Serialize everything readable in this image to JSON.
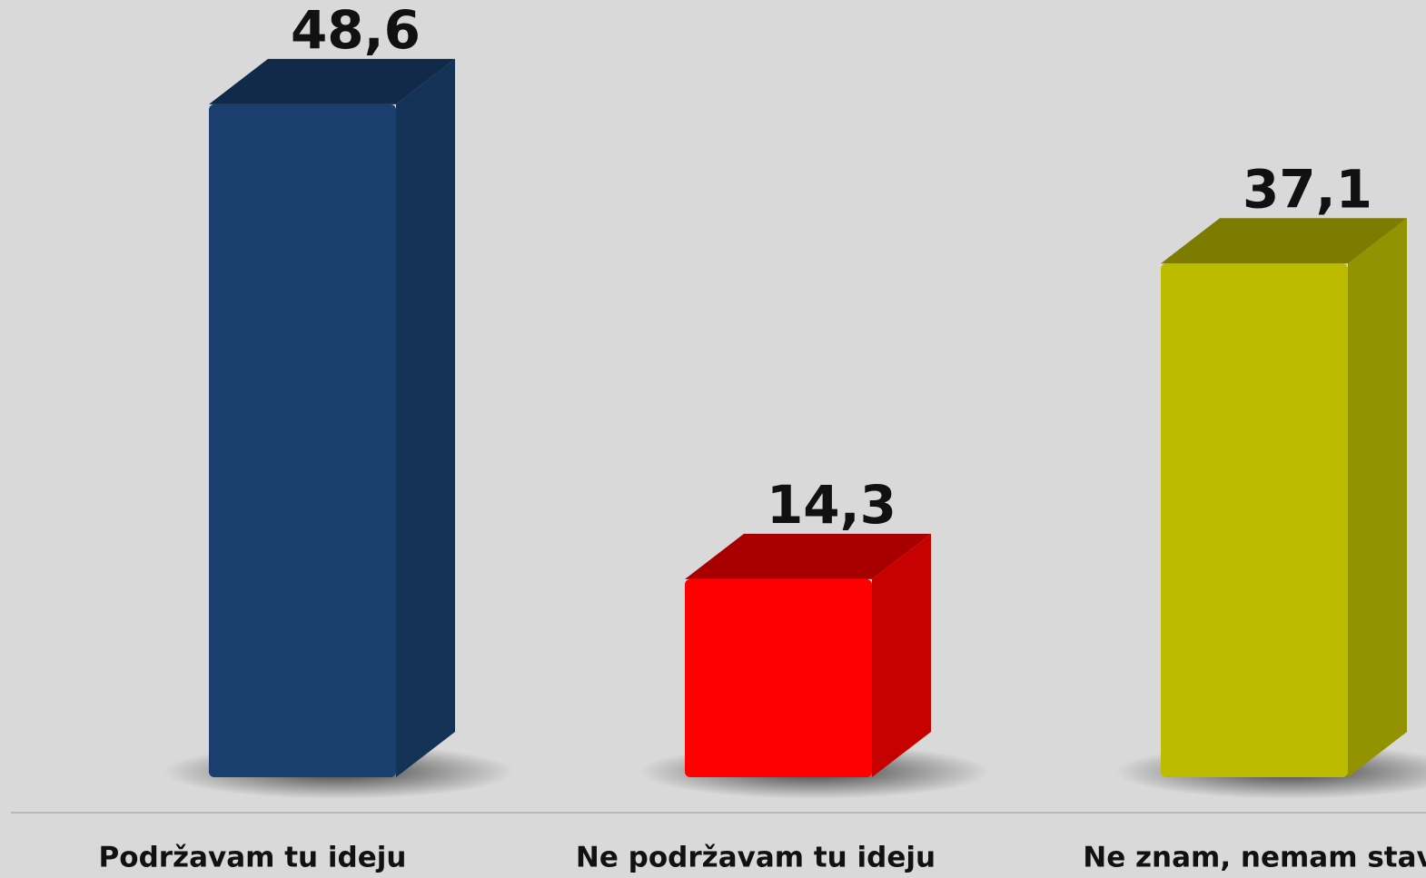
{
  "chart_data": {
    "type": "bar3d",
    "categories": [
      "Podržavam tu ideju",
      "Ne podržavam tu ideju",
      "Ne znam, nemam stav"
    ],
    "values": [
      48.6,
      14.3,
      37.1
    ],
    "value_labels": [
      "48,6",
      "14,3",
      "37,1"
    ],
    "colors": [
      "#1a3f6e",
      "#ff0000",
      "#bdbb00"
    ]
  }
}
